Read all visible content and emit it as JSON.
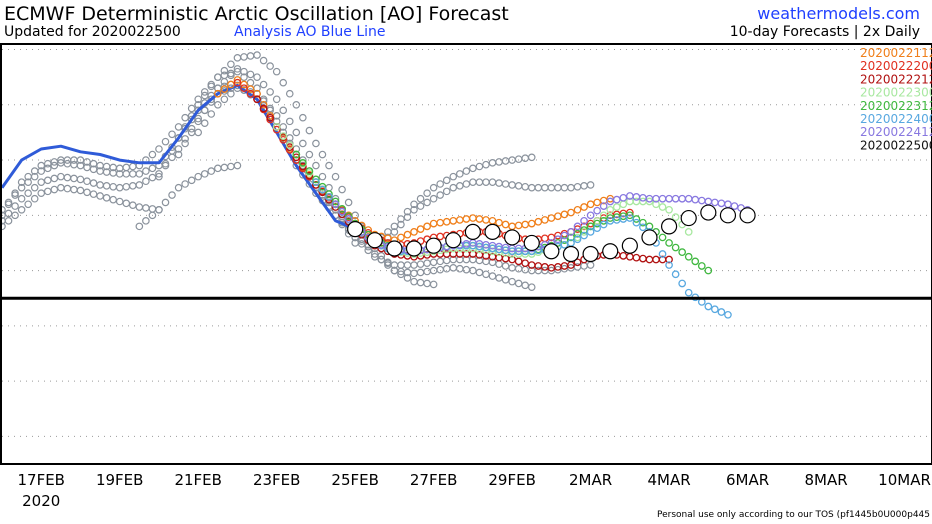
{
  "header": {
    "title": "ECMWF Deterministic Arctic Oscillation [AO] Forecast",
    "updated": "Updated for 2020022500",
    "analysis_note": "Analysis AO Blue Line",
    "brand": "weathermodels.com",
    "subtitle": "10-day Forecasts | 2x Daily"
  },
  "footer": {
    "note": "Personal use only according to our TOS (pf1445b0U000p445"
  },
  "colors": {
    "analysis": "#2f5bd8",
    "older_forecasts": "#8a929c",
    "zero_line": "#000000",
    "grid": "#9a9a9a"
  },
  "chart_data": {
    "type": "line",
    "title": "ECMWF Deterministic Arctic Oscillation [AO] Forecast",
    "x_unit": "days from 17FEB 2020",
    "xlim": [
      -1.0,
      22.7
    ],
    "ylim": [
      -3.0,
      4.6
    ],
    "grid": true,
    "zero_line": 0,
    "x_ticks": [
      {
        "label": "17FEB",
        "x": 0
      },
      {
        "label": "19FEB",
        "x": 2
      },
      {
        "label": "21FEB",
        "x": 4
      },
      {
        "label": "23FEB",
        "x": 6
      },
      {
        "label": "25FEB",
        "x": 8
      },
      {
        "label": "27FEB",
        "x": 10
      },
      {
        "label": "29FEB",
        "x": 12
      },
      {
        "label": "2MAR",
        "x": 14
      },
      {
        "label": "4MAR",
        "x": 16
      },
      {
        "label": "6MAR",
        "x": 18
      },
      {
        "label": "8MAR",
        "x": 20
      },
      {
        "label": "10MAR",
        "x": 22
      }
    ],
    "year_label": "2020",
    "y_grid": [
      -2.5,
      -1.5,
      -0.5,
      0.5,
      1.5,
      2.5,
      3.5,
      4.5
    ],
    "legend_placement": "top-right",
    "analysis": {
      "name": "Analysis AO",
      "color": "#2f5bd8",
      "x": [
        -1,
        -0.5,
        0,
        0.5,
        1,
        1.5,
        2,
        2.5,
        3,
        3.5,
        4,
        4.5,
        5,
        5.5,
        6,
        6.5,
        7,
        7.5,
        8
      ],
      "y": [
        2.0,
        2.5,
        2.7,
        2.75,
        2.65,
        2.6,
        2.5,
        2.45,
        2.45,
        2.9,
        3.4,
        3.7,
        3.85,
        3.6,
        3.0,
        2.4,
        1.9,
        1.4,
        1.25
      ]
    },
    "series": [
      {
        "name": "2020022112",
        "color": "#f07f1a",
        "x": [
          4.5,
          5,
          5.5,
          6,
          6.5,
          7,
          7.5,
          8,
          8.5,
          9,
          9.5,
          10,
          10.5,
          11,
          11.5,
          12,
          12.5,
          13,
          13.5,
          14,
          14.5
        ],
        "y": [
          3.7,
          3.95,
          3.7,
          3.1,
          2.5,
          2.1,
          1.7,
          1.4,
          1.15,
          1.05,
          1.2,
          1.35,
          1.4,
          1.45,
          1.4,
          1.3,
          1.35,
          1.45,
          1.55,
          1.7,
          1.8
        ]
      },
      {
        "name": "2020022200",
        "color": "#e03020",
        "x": [
          5,
          5.5,
          6,
          6.5,
          7,
          7.5,
          8,
          8.5,
          9,
          9.5,
          10,
          10.5,
          11,
          11.5,
          12,
          12.5,
          13,
          13.5,
          14,
          14.5,
          15
        ],
        "y": [
          3.9,
          3.6,
          3.05,
          2.5,
          2.05,
          1.7,
          1.35,
          1.1,
          0.95,
          1.0,
          1.1,
          1.15,
          1.2,
          1.2,
          1.1,
          1.05,
          1.1,
          1.2,
          1.35,
          1.5,
          1.55
        ]
      },
      {
        "name": "2020022212",
        "color": "#b01010",
        "x": [
          5.5,
          6,
          6.5,
          7,
          7.5,
          8,
          8.5,
          9,
          9.5,
          10,
          10.5,
          11,
          11.5,
          12,
          12.5,
          13,
          13.5,
          14,
          14.5,
          15,
          15.5,
          16
        ],
        "y": [
          3.6,
          3.1,
          2.55,
          2.05,
          1.65,
          1.25,
          0.95,
          0.8,
          0.75,
          0.8,
          0.8,
          0.8,
          0.75,
          0.7,
          0.6,
          0.55,
          0.6,
          0.75,
          0.8,
          0.75,
          0.7,
          0.7
        ]
      },
      {
        "name": "2020022300",
        "color": "#a8e8a0",
        "x": [
          6,
          6.5,
          7,
          7.5,
          8,
          8.5,
          9,
          9.5,
          10,
          10.5,
          11,
          11.5,
          12,
          12.5,
          13,
          13.5,
          14,
          14.5,
          15,
          15.5,
          16,
          16.5
        ],
        "y": [
          3.1,
          2.6,
          2.1,
          1.7,
          1.3,
          1.0,
          0.85,
          0.8,
          0.85,
          0.9,
          0.9,
          0.85,
          0.8,
          0.8,
          0.9,
          1.0,
          1.3,
          1.6,
          1.75,
          1.75,
          1.6,
          1.2
        ]
      },
      {
        "name": "2020022312",
        "color": "#40b840",
        "x": [
          6.5,
          7,
          7.5,
          8,
          8.5,
          9,
          9.5,
          10,
          10.5,
          11,
          11.5,
          12,
          12.5,
          13,
          13.5,
          14,
          14.5,
          15,
          15.5,
          16,
          16.5,
          17
        ],
        "y": [
          2.6,
          2.15,
          1.75,
          1.35,
          1.05,
          0.9,
          0.85,
          0.9,
          0.95,
          0.95,
          0.9,
          0.85,
          0.85,
          0.95,
          1.1,
          1.3,
          1.45,
          1.5,
          1.3,
          1.0,
          0.75,
          0.5
        ]
      },
      {
        "name": "2020022400",
        "color": "#58a8e0",
        "x": [
          7,
          7.5,
          8,
          8.5,
          9,
          9.5,
          10,
          10.5,
          11,
          11.5,
          12,
          12.5,
          13,
          13.5,
          14,
          14.5,
          15,
          15.5,
          16,
          16.5,
          17,
          17.5
        ],
        "y": [
          2.1,
          1.7,
          1.3,
          1.0,
          0.85,
          0.85,
          0.9,
          0.95,
          0.95,
          0.9,
          0.85,
          0.85,
          0.9,
          1.0,
          1.2,
          1.4,
          1.45,
          1.2,
          0.6,
          0.1,
          -0.15,
          -0.3
        ]
      },
      {
        "name": "2020022412",
        "color": "#8878e0",
        "x": [
          7.5,
          8,
          8.5,
          9,
          9.5,
          10,
          10.5,
          11,
          11.5,
          12,
          12.5,
          13,
          13.5,
          14,
          14.5,
          15,
          15.5,
          16,
          16.5,
          17,
          17.5,
          18
        ],
        "y": [
          1.7,
          1.3,
          1.0,
          0.9,
          0.85,
          0.9,
          0.95,
          1.0,
          0.95,
          0.9,
          0.9,
          1.0,
          1.2,
          1.5,
          1.75,
          1.85,
          1.8,
          1.8,
          1.8,
          1.75,
          1.7,
          1.6
        ]
      },
      {
        "name": "2020022500",
        "color": "#111111",
        "x": [
          8,
          8.5,
          9,
          9.5,
          10,
          10.5,
          11,
          11.5,
          12,
          12.5,
          13,
          13.5,
          14,
          14.5,
          15,
          15.5,
          16,
          16.5,
          17,
          17.5,
          18
        ],
        "y": [
          1.25,
          1.05,
          0.9,
          0.9,
          0.95,
          1.05,
          1.2,
          1.2,
          1.1,
          1.0,
          0.85,
          0.8,
          0.8,
          0.85,
          0.95,
          1.1,
          1.3,
          1.45,
          1.55,
          1.5,
          1.5
        ]
      }
    ],
    "older_forecasts": [
      {
        "x": [
          -1,
          -0.5,
          0,
          0.5,
          1,
          1.5,
          2,
          2.5,
          3,
          3.5,
          4,
          4.5,
          5
        ],
        "y": [
          1.6,
          2.0,
          2.3,
          2.45,
          2.4,
          2.3,
          2.25,
          2.25,
          2.4,
          2.9,
          3.4,
          3.8,
          3.9
        ]
      },
      {
        "x": [
          -1,
          -0.5,
          0,
          0.5,
          1,
          1.5,
          2,
          2.5,
          3,
          3.5,
          4,
          4.5,
          5,
          5.5
        ],
        "y": [
          1.4,
          1.8,
          2.1,
          2.2,
          2.15,
          2.05,
          2.0,
          2.05,
          2.25,
          2.7,
          3.25,
          3.7,
          3.85,
          3.6
        ]
      },
      {
        "x": [
          -1,
          -0.5,
          0,
          0.5,
          1,
          1.5,
          2,
          2.5,
          3,
          3.5,
          4,
          4.5,
          5,
          5.5,
          6,
          6.5,
          7,
          7.5,
          8
        ],
        "y": [
          1.5,
          2.1,
          2.4,
          2.5,
          2.5,
          2.4,
          2.35,
          2.4,
          2.7,
          3.1,
          3.6,
          4.0,
          4.1,
          3.8,
          3.2,
          2.6,
          2.0,
          1.5,
          1.0
        ]
      },
      {
        "x": [
          -1,
          -0.5,
          0,
          0.5,
          1,
          1.5,
          2,
          2.5,
          3
        ],
        "y": [
          1.3,
          1.6,
          1.9,
          2.0,
          1.95,
          1.85,
          1.75,
          1.65,
          1.6
        ]
      },
      {
        "x": [
          3,
          3.5,
          4,
          4.5,
          5,
          5.5,
          6,
          6.5,
          7,
          7.5,
          8,
          8.5,
          9,
          9.5,
          10
        ],
        "y": [
          2.2,
          2.9,
          3.5,
          4.0,
          4.35,
          4.4,
          4.1,
          3.5,
          2.8,
          2.2,
          1.5,
          0.9,
          0.5,
          0.3,
          0.25
        ]
      },
      {
        "x": [
          3.5,
          4,
          4.5,
          5,
          5.5,
          6,
          6.5,
          7,
          7.5,
          8,
          8.5,
          9,
          9.5,
          10,
          10.5,
          11,
          11.5,
          12,
          12.5
        ],
        "y": [
          2.6,
          3.2,
          3.8,
          4.15,
          4.0,
          3.6,
          3.0,
          2.4,
          1.8,
          1.2,
          0.8,
          0.5,
          0.45,
          0.5,
          0.55,
          0.5,
          0.4,
          0.3,
          0.2
        ]
      },
      {
        "x": [
          4,
          4.5,
          5,
          5.5,
          6,
          6.5,
          7,
          7.5,
          8,
          8.5,
          9,
          9.5,
          10,
          10.5,
          11,
          11.5,
          12,
          12.5,
          13,
          13.5,
          14
        ],
        "y": [
          3.0,
          3.5,
          3.8,
          3.7,
          3.3,
          2.7,
          2.1,
          1.6,
          1.1,
          0.75,
          0.6,
          0.6,
          0.65,
          0.7,
          0.7,
          0.65,
          0.55,
          0.5,
          0.5,
          0.55,
          0.6
        ]
      },
      {
        "x": [
          6.5,
          7,
          7.5,
          8,
          8.5,
          9,
          9.5,
          10,
          10.5,
          11,
          11.5,
          12,
          12.5,
          13,
          13.5,
          14
        ],
        "y": [
          2.4,
          1.9,
          1.5,
          1.1,
          0.9,
          1.2,
          1.6,
          1.8,
          2.0,
          2.1,
          2.1,
          2.05,
          2.0,
          2.0,
          2.0,
          2.05
        ]
      },
      {
        "x": [
          7,
          7.5,
          8,
          8.5,
          9,
          9.5,
          10,
          10.5,
          11,
          11.5,
          12,
          12.5
        ],
        "y": [
          2.0,
          1.6,
          1.25,
          1.0,
          1.3,
          1.7,
          2.0,
          2.2,
          2.35,
          2.45,
          2.5,
          2.55
        ]
      },
      {
        "x": [
          2.5,
          3,
          3.5,
          4,
          4.5,
          5
        ],
        "y": [
          1.3,
          1.6,
          2.0,
          2.2,
          2.35,
          2.4
        ]
      }
    ]
  }
}
